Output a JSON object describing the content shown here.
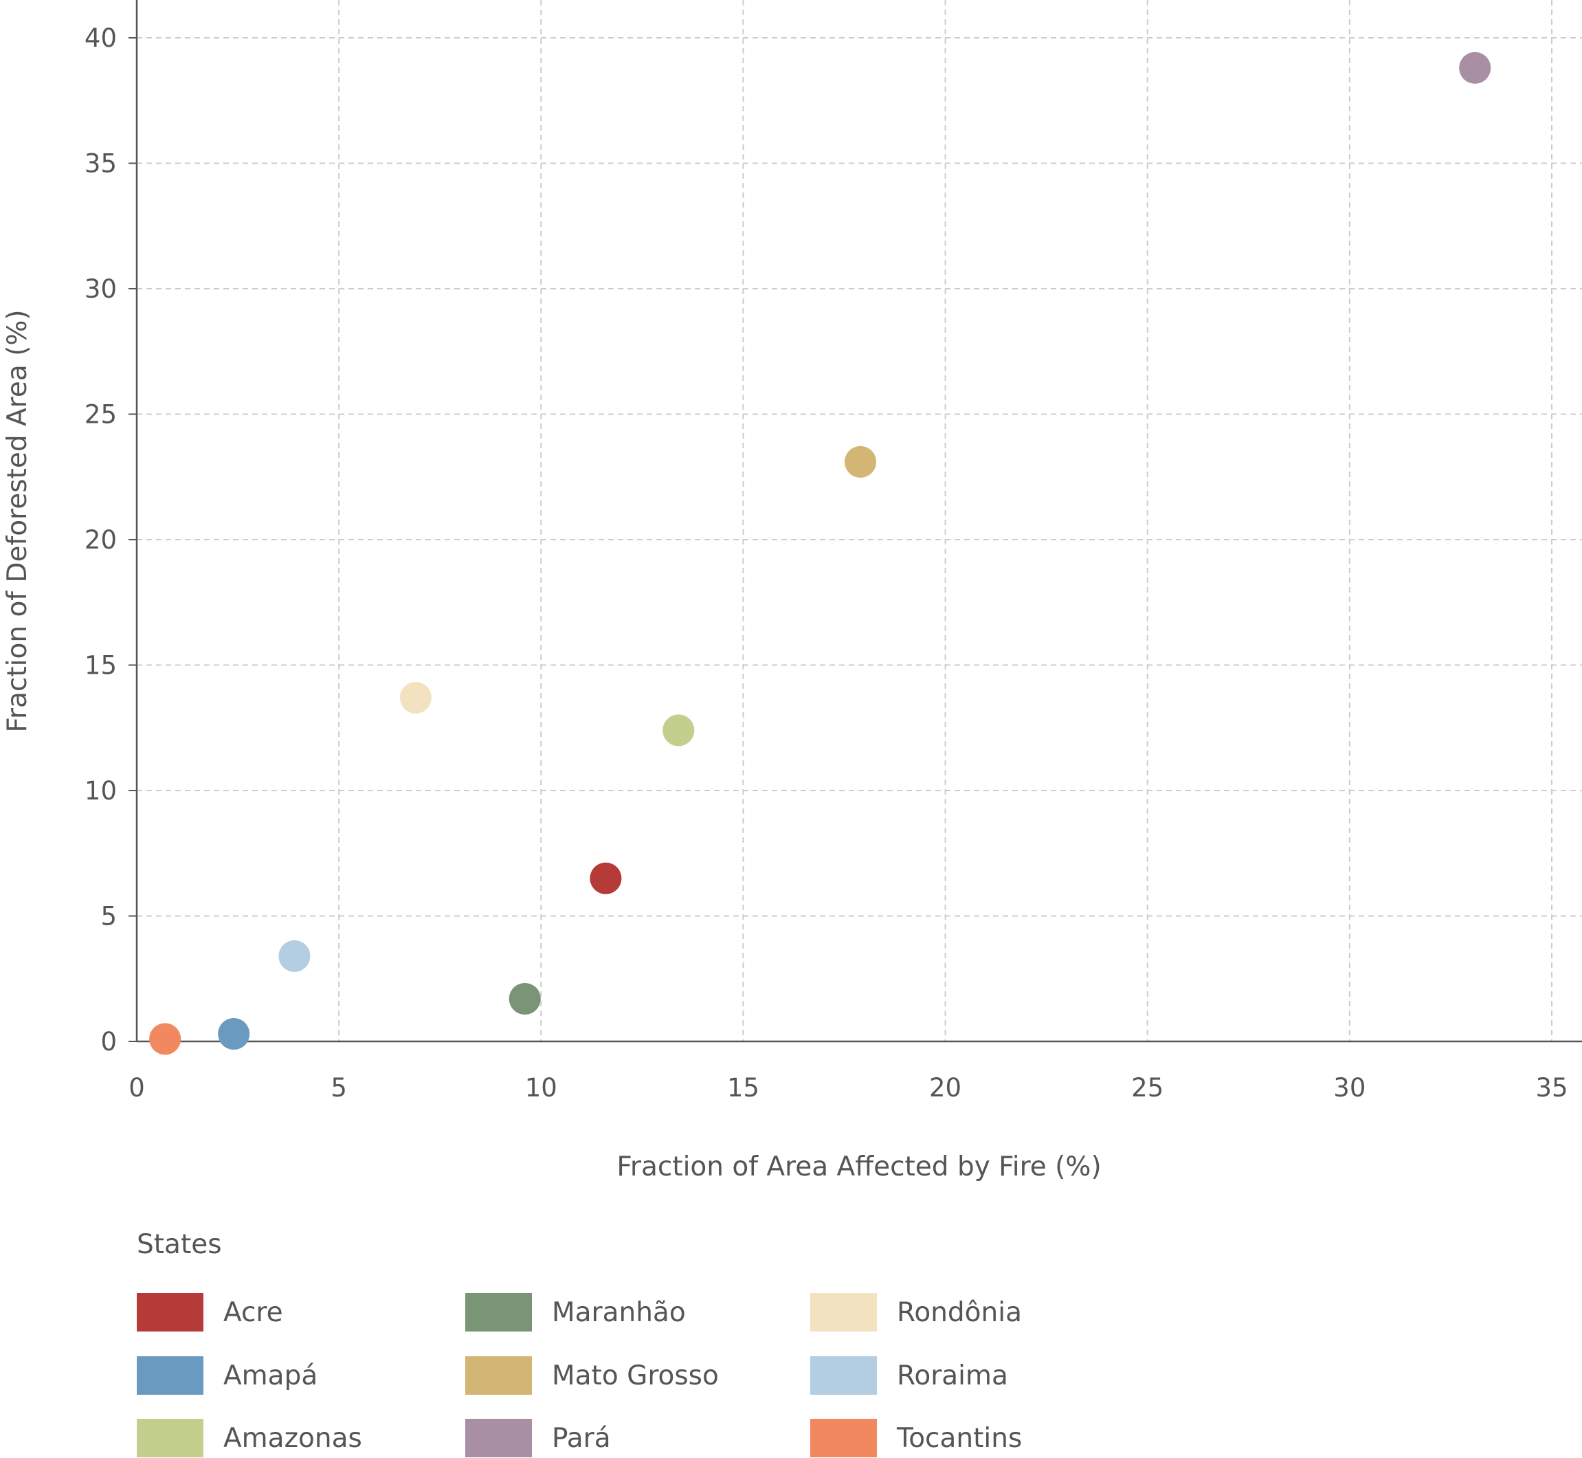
{
  "chart_data": {
    "type": "scatter",
    "title": "",
    "xlabel": "Fraction of Area Affected by Fire (%)",
    "ylabel": "Fraction of Deforested Area (%)",
    "xlim": [
      0,
      35
    ],
    "ylim": [
      0,
      40
    ],
    "xticks": [
      0,
      5,
      10,
      15,
      20,
      25,
      30,
      35
    ],
    "yticks": [
      0,
      5,
      10,
      15,
      20,
      25,
      30,
      35,
      40
    ],
    "grid": true,
    "legend_title": "States",
    "legend_position": "bottom",
    "series": [
      {
        "name": "Acre",
        "color": "#b53a38",
        "x": 11.6,
        "y": 6.5
      },
      {
        "name": "Amapá",
        "color": "#6b9ac0",
        "x": 2.4,
        "y": 0.3
      },
      {
        "name": "Amazonas",
        "color": "#c3cf8c",
        "x": 13.4,
        "y": 12.4
      },
      {
        "name": "Maranhão",
        "color": "#7a9476",
        "x": 9.6,
        "y": 1.7
      },
      {
        "name": "Mato Grosso",
        "color": "#d3b674",
        "x": 17.9,
        "y": 23.1
      },
      {
        "name": "Pará",
        "color": "#a98fa3",
        "x": 33.1,
        "y": 38.8
      },
      {
        "name": "Rondônia",
        "color": "#f2e2c0",
        "x": 6.9,
        "y": 13.7
      },
      {
        "name": "Roraima",
        "color": "#b3cde2",
        "x": 3.9,
        "y": 3.4
      },
      {
        "name": "Tocantins",
        "color": "#f2885f",
        "x": 0.7,
        "y": 0.1
      }
    ]
  }
}
